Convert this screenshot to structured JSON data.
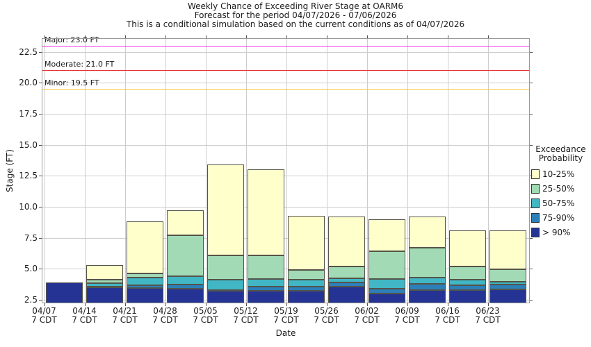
{
  "title": {
    "line1": "Weekly Chance of Exceeding River Stage at OARM6",
    "line2": "Forecast for the period 04/07/2026 - 07/06/2026",
    "line3": "This is a conditional simulation based on the current conditions as of 04/07/2026"
  },
  "axes": {
    "xlabel": "Date",
    "ylabel": "Stage (FT)",
    "ytick_labels": [
      "2.5",
      "5.0",
      "7.5",
      "10.0",
      "12.5",
      "15.0",
      "17.5",
      "20.0",
      "22.5"
    ],
    "xtick_time_label": "7 CDT"
  },
  "legend": {
    "title_line1": "Exceedance",
    "title_line2": "Probability",
    "entries": [
      {
        "label": "10-25%",
        "color": "#ffffcc"
      },
      {
        "label": "25-50%",
        "color": "#a1dab4"
      },
      {
        "label": "50-75%",
        "color": "#41b6c4"
      },
      {
        "label": "75-90%",
        "color": "#2c7fb8"
      },
      {
        "label": "> 90%",
        "color": "#253494"
      }
    ]
  },
  "flood_lines": [
    {
      "name": "Major",
      "label": "Major: 23.0 FT",
      "value": 23.0,
      "color": "#f030f0"
    },
    {
      "name": "Moderate",
      "label": "Moderate: 21.0 FT",
      "value": 21.0,
      "color": "#e83030"
    },
    {
      "name": "Minor",
      "label": "Minor: 19.5 FT",
      "value": 19.5,
      "color": "#ffc832"
    }
  ],
  "chart_data": {
    "type": "bar",
    "stacked": true,
    "title": "Weekly Chance of Exceeding River Stage at OARM6",
    "xlabel": "Date",
    "ylabel": "Stage (FT)",
    "ylim": [
      2.22,
      23.6
    ],
    "yticks": [
      2.5,
      5.0,
      7.5,
      10.0,
      12.5,
      15.0,
      17.5,
      20.0,
      22.5
    ],
    "grid": true,
    "legend_position": "right",
    "categories": [
      "04/07",
      "04/14",
      "04/21",
      "04/28",
      "05/05",
      "05/12",
      "05/19",
      "05/26",
      "06/02",
      "06/09",
      "06/16",
      "06/23"
    ],
    "units": "FT",
    "bounds_description": "Stage (FT) at stacked-segment boundaries; yellow band spans p25..p10_top, green p50..p25, teal p75..p50, blue p90..p75, navy axis-bottom..p90",
    "bounds": {
      "p10_top": [
        3.9,
        5.3,
        8.8,
        9.7,
        13.4,
        13.0,
        9.3,
        9.2,
        9.0,
        9.2,
        8.1,
        8.1
      ],
      "p25": [
        3.9,
        4.1,
        4.65,
        7.7,
        6.1,
        6.1,
        4.9,
        5.2,
        6.4,
        6.7,
        5.2,
        4.95
      ],
      "p50": [
        3.9,
        3.85,
        4.3,
        4.4,
        4.1,
        4.2,
        4.1,
        4.25,
        4.2,
        4.3,
        4.1,
        3.95
      ],
      "p75": [
        3.9,
        3.55,
        3.7,
        3.75,
        3.3,
        3.55,
        3.55,
        3.9,
        3.4,
        3.8,
        3.65,
        3.75
      ],
      "p90": [
        3.9,
        3.5,
        3.45,
        3.4,
        3.25,
        3.2,
        3.2,
        3.55,
        3.0,
        3.3,
        3.3,
        3.35
      ]
    },
    "stack_order": [
      {
        "to": "p90",
        "band": "> 90%",
        "color": "#253494"
      },
      {
        "to": "p75",
        "band": "75-90%",
        "color": "#2c7fb8"
      },
      {
        "to": "p50",
        "band": "50-75%",
        "color": "#41b6c4"
      },
      {
        "to": "p25",
        "band": "25-50%",
        "color": "#a1dab4"
      },
      {
        "to": "p10_top",
        "band": "10-25%",
        "color": "#ffffcc"
      }
    ]
  }
}
